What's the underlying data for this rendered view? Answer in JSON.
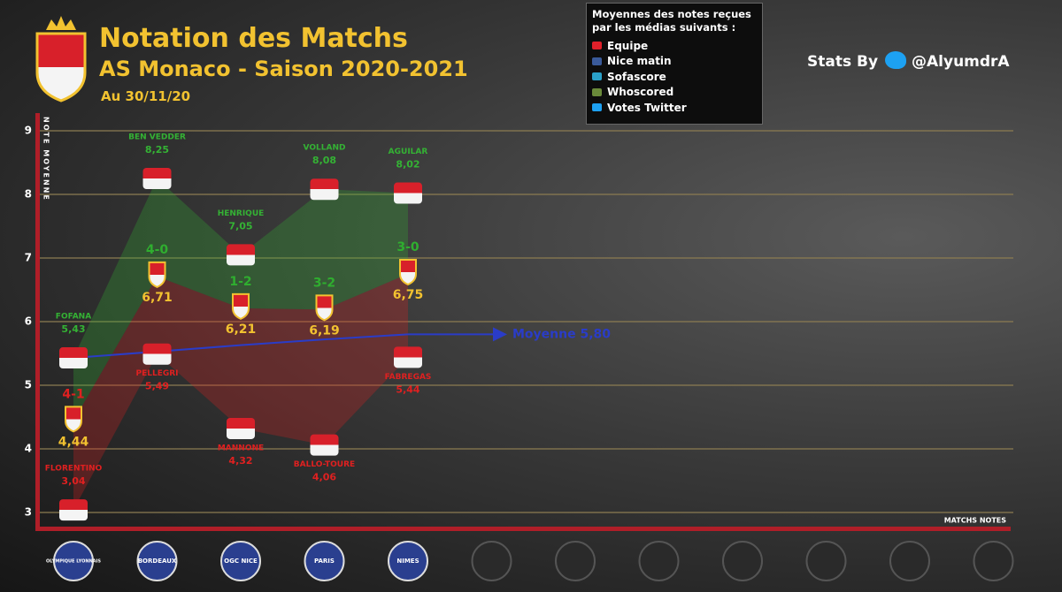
{
  "header": {
    "title": "Notation des Matchs",
    "subtitle": "AS Monaco - Saison 2020-2021",
    "date": "Au 30/11/20",
    "stats_by": "Stats By",
    "handle": "@AlyumdrA"
  },
  "sources": {
    "title": "Moyennes des notes reçues par les médias suivants :",
    "items": [
      "Equipe",
      "Nice matin",
      "Sofascore",
      "Whoscored",
      "Votes Twitter"
    ],
    "colors": [
      "#e0202a",
      "#3a5a9a",
      "#2aa0c8",
      "#6a8a3a",
      "#1da1f2"
    ]
  },
  "chart_data": {
    "type": "line",
    "y_label": "NOTE MOYENNE",
    "x_label": "MATCHS NOTES",
    "categories": [
      "OLYMPIQUE LYONNAIS",
      "BORDEAUX",
      "OGC NICE",
      "PARIS",
      "NIMES",
      null,
      null,
      null,
      null,
      null,
      null,
      null
    ],
    "ylim": [
      3,
      9
    ],
    "yticks": [
      3,
      4,
      5,
      6,
      7,
      8,
      9
    ],
    "grid": true,
    "scores": [
      "4-1",
      "4-0",
      "1-2",
      "3-2",
      "3-0",
      null,
      null,
      null,
      null,
      null,
      null,
      null
    ],
    "score_colors": [
      "#e02020",
      "#2fae2f",
      "#2fae2f",
      "#2fae2f",
      "#2fae2f"
    ],
    "series": [
      {
        "color": "#34b234",
        "labels": [
          "FOFANA",
          "BEN VEDDER",
          "HENRIQUE",
          "VOLLAND",
          "AGUILAR",
          null,
          null,
          null,
          null,
          null,
          null,
          null
        ],
        "values": [
          5.43,
          8.25,
          7.05,
          8.08,
          8.02,
          null,
          null,
          null,
          null,
          null,
          null,
          null
        ],
        "value_labels": [
          "5,43",
          "8,25",
          "7,05",
          "8,08",
          "8,02",
          null,
          null,
          null,
          null,
          null,
          null,
          null
        ]
      },
      {
        "color": "#f2c230",
        "values": [
          4.44,
          6.71,
          6.21,
          6.19,
          6.75,
          null,
          null,
          null,
          null,
          null,
          null,
          null
        ],
        "value_labels": [
          "4,44",
          "6,71",
          "6,21",
          "6,19",
          "6,75",
          null,
          null,
          null,
          null,
          null,
          null,
          null
        ]
      },
      {
        "color": "#e02020",
        "labels": [
          "FLORENTINO",
          "PELLEGRI",
          "MANNONE",
          "BALLO-TOURE",
          "FABREGAS",
          null,
          null,
          null,
          null,
          null,
          null,
          null
        ],
        "values": [
          3.04,
          5.49,
          4.32,
          4.06,
          5.44,
          null,
          null,
          null,
          null,
          null,
          null,
          null
        ],
        "value_labels": [
          "3,04",
          "5,49",
          "4,32",
          "4,06",
          "5,44",
          null,
          null,
          null,
          null,
          null,
          null,
          null
        ]
      },
      {
        "name": "Moyenne 5,80",
        "color": "#2a3cc8",
        "values": [
          5.43,
          5.53,
          5.63,
          5.72,
          5.8,
          null,
          null,
          null,
          null,
          null,
          null,
          null
        ]
      }
    ]
  }
}
